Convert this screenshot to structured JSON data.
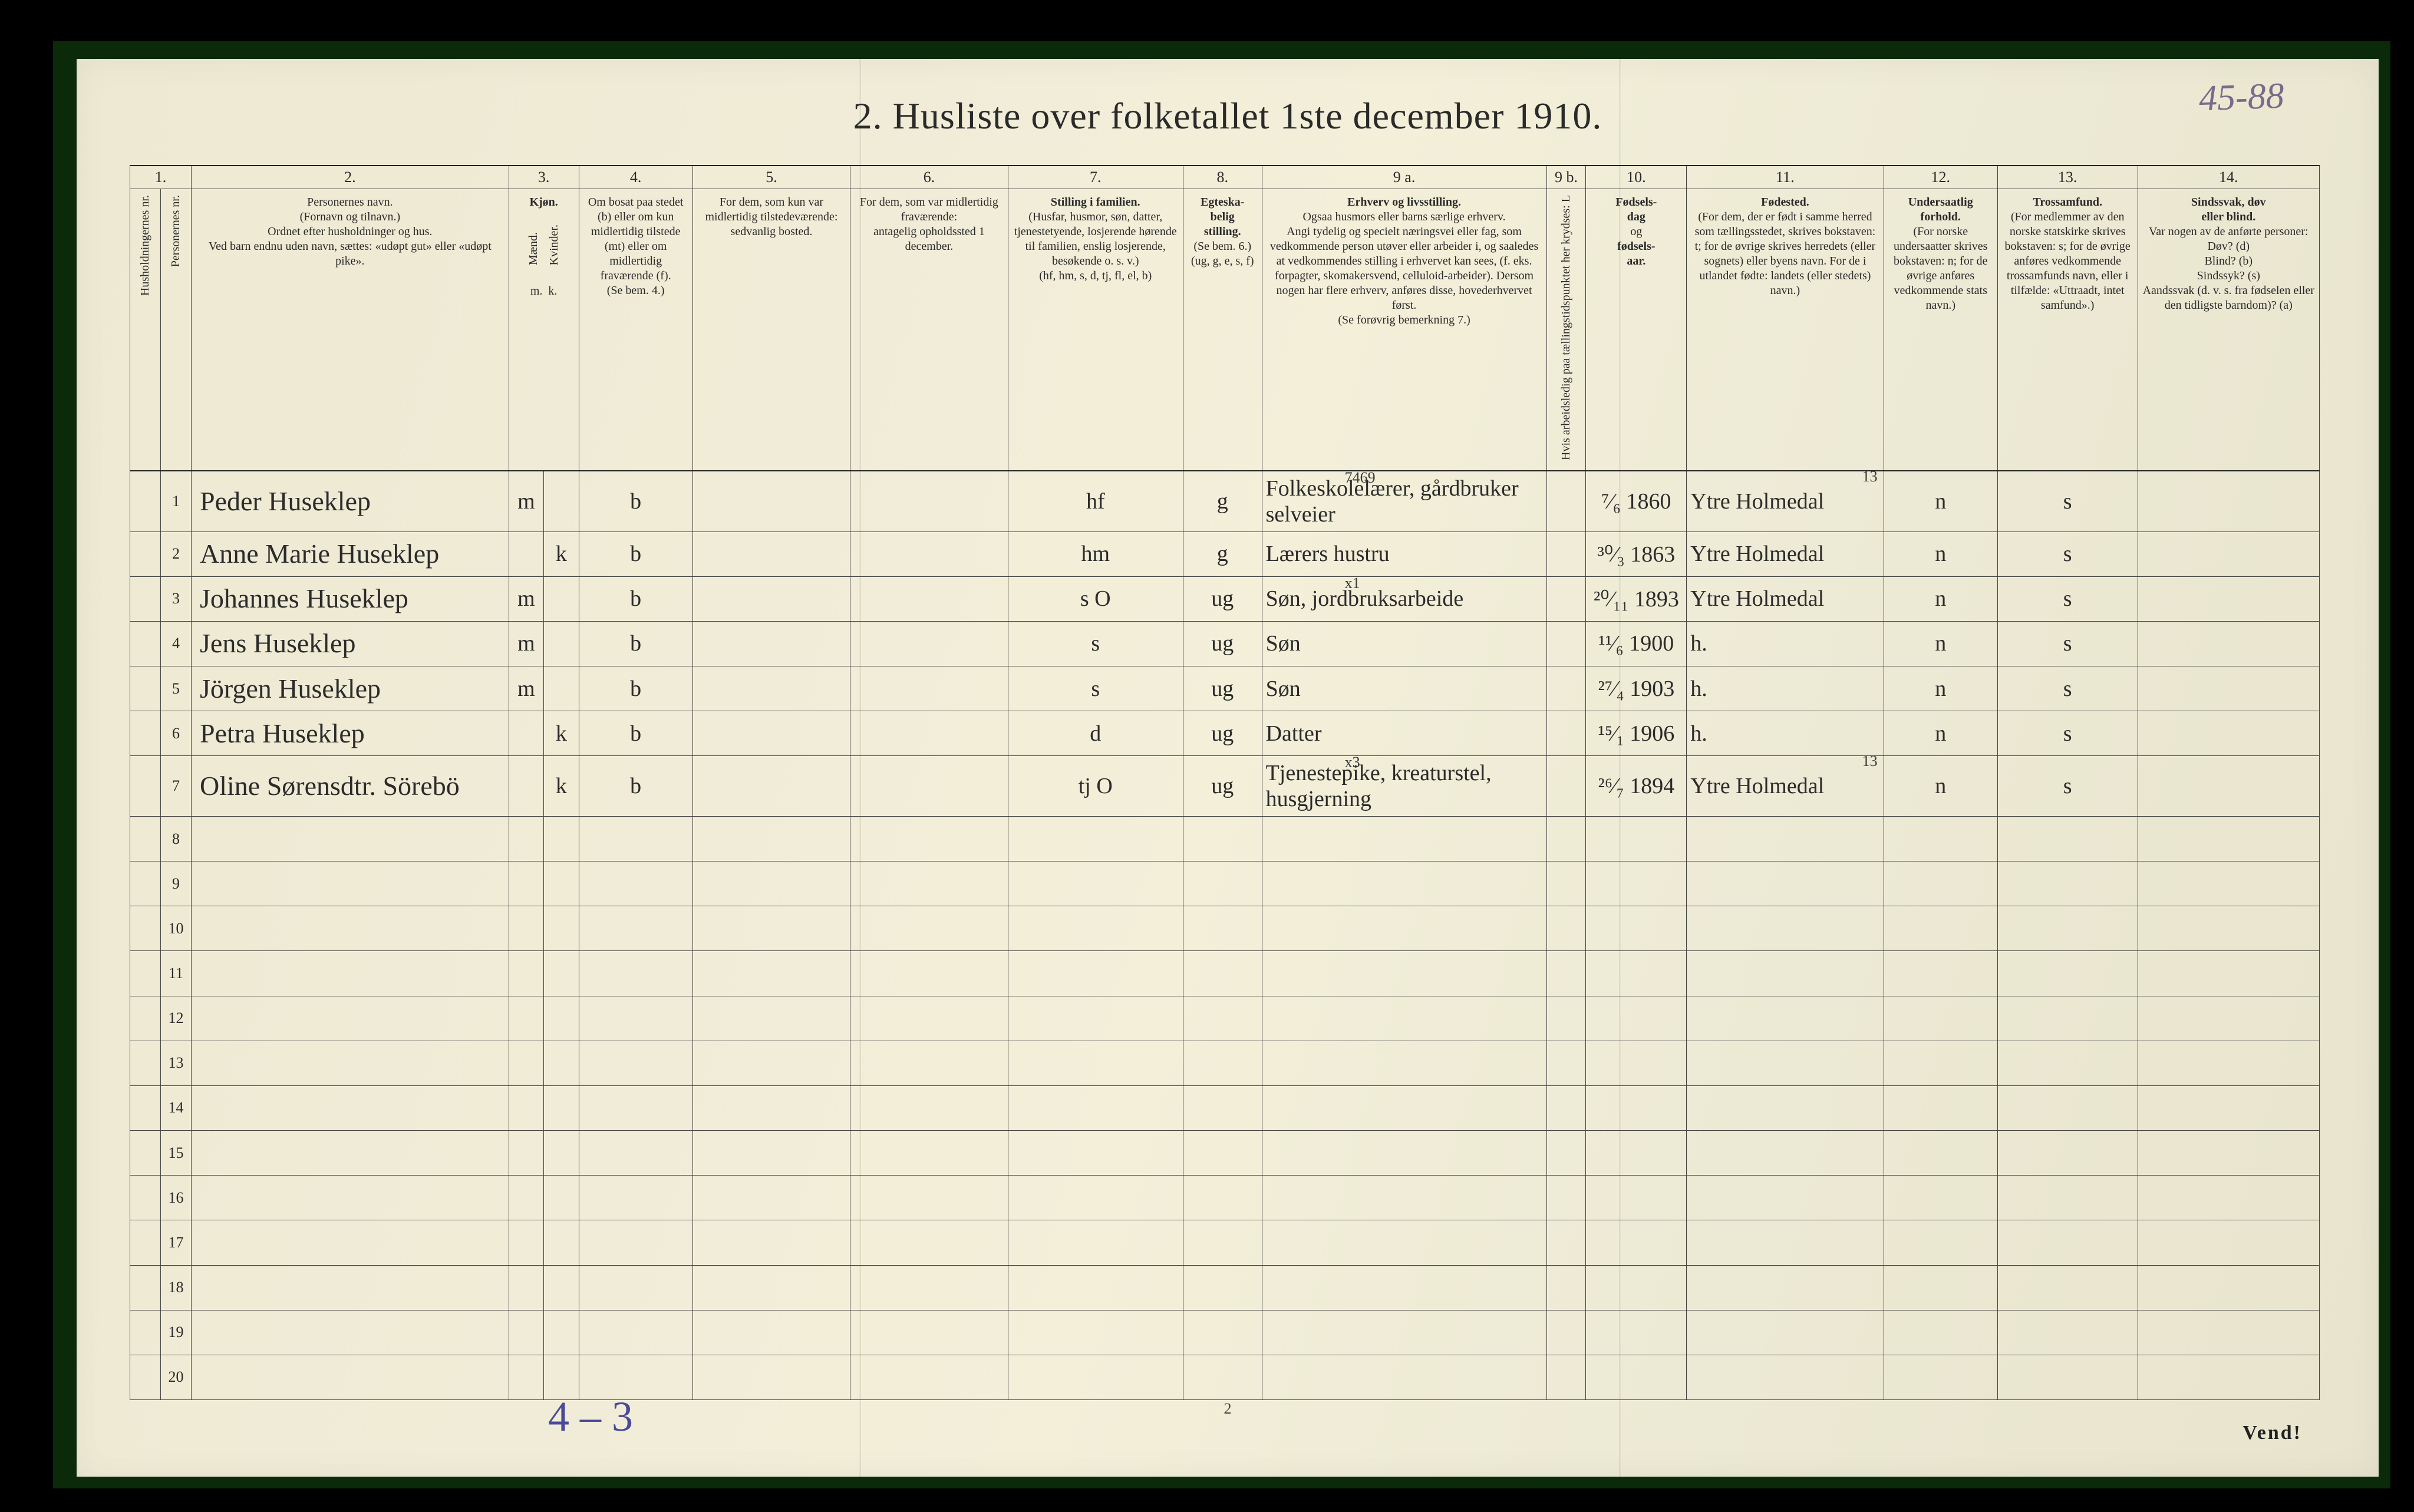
{
  "title": "2.  Husliste over folketallet 1ste december 1910.",
  "corner_note": "45-88",
  "bottom_note": "4 – 3",
  "page_small": "2",
  "vend": "Vend!",
  "fold_positions_pct": [
    34,
    67
  ],
  "colors": {
    "paper_base": "#f0ecd7",
    "ink": "#2a2a2a",
    "rule": "#444444",
    "pencil_blue": "#4a4a9a",
    "pencil_violet": "#7a6a8a",
    "frame_bg": "#0a2a0a",
    "outer_bg": "#000000"
  },
  "columns": {
    "nums": [
      "1.",
      "2.",
      "3.",
      "4.",
      "5.",
      "6.",
      "7.",
      "8.",
      "9 a.",
      "9 b.",
      "10.",
      "11.",
      "12.",
      "13.",
      "14."
    ],
    "widths_pct": [
      1.4,
      1.4,
      14.5,
      1.6,
      1.6,
      5.2,
      7.2,
      7.2,
      8.0,
      3.6,
      13.0,
      1.8,
      4.6,
      9.0,
      5.2,
      6.4,
      8.3
    ],
    "heads": [
      "Husholdningernes nr.",
      "Personernes nr.",
      "Personernes navn.\n(Fornavn og tilnavn.)\nOrdnet efter husholdninger og hus.\nVed barn endnu uden navn, sættes: «udøpt gut» eller «udøpt pike».",
      "Kjøn.",
      "Om bosat paa stedet (b) eller om kun midlertidig tilstede (mt) eller om midlertidig fraværende (f).\n(Se bem. 4.)",
      "For dem, som kun var midlertidig tilstedeværende:\nsedvanlig bosted.",
      "For dem, som var midlertidig fraværende:\nantagelig opholdssted 1 december.",
      "Stilling i familien.\n(Husfar, husmor, søn, datter, tjenestetyende, losjerende hørende til familien, enslig losjerende, besøkende o. s. v.)\n(hf, hm, s, d, tj, fl, el, b)",
      "Egteskabelig stilling.\n(Se bem. 6.)\n(ug, g, e, s, f)",
      "Erhverv og livsstilling.\nOgsaa husmors eller barns særlige erhverv.\nAngi tydelig og specielt næringsvei eller fag, som vedkommende person utøver eller arbeider i, og saaledes at vedkommendes stilling i erhvervet kan sees, (f. eks. forpagter, skomakersvend, celluloid-arbeider). Dersom nogen har flere erhverv, anføres disse, hovederhvervet først.\n(Se forøvrig bemerkning 7.)",
      "Hvis arbeidsledig paa tællingstidspunktet her krydses: L",
      "Fødsels-dag og fødsels-aar.",
      "Fødested.\n(For dem, der er født i samme herred som tællingsstedet, skrives bokstaven: t; for de øvrige skrives herredets (eller sognets) eller byens navn. For de i utlandet fødte: landets (eller stedets) navn.)",
      "Undersaatlig forhold.\n(For norske undersaatter skrives bokstaven: n; for de øvrige anføres vedkommende stats navn.)",
      "Trossamfund.\n(For medlemmer av den norske statskirke skrives bokstaven: s; for de øvrige anføres vedkommende trossamfunds navn, eller i tilfælde: «Uttraadt, intet samfund».)",
      "Sindssvak, døv eller blind.\nVar nogen av de anførte personer:\nDøv? (d)\nBlind? (b)\nSindssyk? (s)\nAandssvak (d. v. s. fra fødselen eller den tidligste barndom)? (a)"
    ],
    "sex_sub": [
      "Mænd.",
      "Kvinder."
    ],
    "sex_codes": [
      "m.",
      "k."
    ]
  },
  "rows": [
    {
      "n": "1",
      "name": "Peder Huseklep",
      "sex_m": "m",
      "sex_k": "",
      "res": "b",
      "temp": "",
      "away": "",
      "fam": "hf",
      "mar": "g",
      "occ": "Folkeskolelærer, gårdbruker selveier",
      "occ_annot": "7469",
      "led": "",
      "birth": "⁷⁄₆ 1860",
      "place": "Ytre Holmedal",
      "place_annot": "13",
      "nat": "n",
      "rel": "s",
      "dis": ""
    },
    {
      "n": "2",
      "name": "Anne Marie Huseklep",
      "sex_m": "",
      "sex_k": "k",
      "res": "b",
      "temp": "",
      "away": "",
      "fam": "hm",
      "mar": "g",
      "occ": "Lærers hustru",
      "occ_annot": "",
      "led": "",
      "birth": "³⁰⁄₃ 1863",
      "place": "Ytre Holmedal",
      "place_annot": "",
      "nat": "n",
      "rel": "s",
      "dis": ""
    },
    {
      "n": "3",
      "name": "Johannes Huseklep",
      "sex_m": "m",
      "sex_k": "",
      "res": "b",
      "temp": "",
      "away": "",
      "fam": "s      O",
      "mar": "ug",
      "occ": "Søn, jordbruksarbeide",
      "occ_annot": "x1",
      "led": "",
      "birth": "²⁰⁄₁₁ 1893",
      "place": "Ytre Holmedal",
      "place_annot": "",
      "nat": "n",
      "rel": "s",
      "dis": ""
    },
    {
      "n": "4",
      "name": "Jens Huseklep",
      "sex_m": "m",
      "sex_k": "",
      "res": "b",
      "temp": "",
      "away": "",
      "fam": "s",
      "mar": "ug",
      "occ": "Søn",
      "occ_annot": "",
      "led": "",
      "birth": "¹¹⁄₆ 1900",
      "place": "h.",
      "place_annot": "",
      "nat": "n",
      "rel": "s",
      "dis": ""
    },
    {
      "n": "5",
      "name": "Jörgen Huseklep",
      "sex_m": "m",
      "sex_k": "",
      "res": "b",
      "temp": "",
      "away": "",
      "fam": "s",
      "mar": "ug",
      "occ": "Søn",
      "occ_annot": "",
      "led": "",
      "birth": "²⁷⁄₄ 1903",
      "place": "h.",
      "place_annot": "",
      "nat": "n",
      "rel": "s",
      "dis": ""
    },
    {
      "n": "6",
      "name": "Petra Huseklep",
      "sex_m": "",
      "sex_k": "k",
      "res": "b",
      "temp": "",
      "away": "",
      "fam": "d",
      "mar": "ug",
      "occ": "Datter",
      "occ_annot": "",
      "led": "",
      "birth": "¹⁵⁄₁ 1906",
      "place": "h.",
      "place_annot": "",
      "nat": "n",
      "rel": "s",
      "dis": ""
    },
    {
      "n": "7",
      "name": "Oline Sørensdtr. Sörebö",
      "sex_m": "",
      "sex_k": "k",
      "res": "b",
      "temp": "",
      "away": "",
      "fam": "tj      O",
      "mar": "ug",
      "occ": "Tjenestepike, kreaturstel, husgjerning",
      "occ_annot": "x3",
      "led": "",
      "birth": "²⁶⁄₇ 1894",
      "place": "Ytre Holmedal",
      "place_annot": "13",
      "nat": "n",
      "rel": "s",
      "dis": ""
    }
  ],
  "blank_rows": [
    "8",
    "9",
    "10",
    "11",
    "12",
    "13",
    "14",
    "15",
    "16",
    "17",
    "18",
    "19",
    "20"
  ]
}
